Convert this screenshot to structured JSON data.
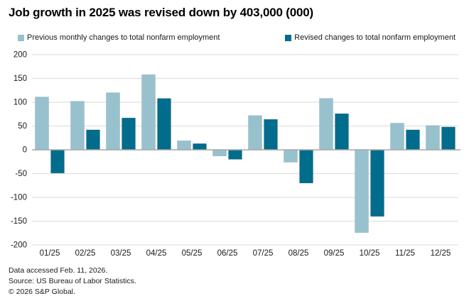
{
  "header": {
    "title": "Job growth in 2025 was revised down by 403,000 (000)"
  },
  "legend": {
    "items": [
      {
        "label": "Previous monthly changes to total nonfarm employment",
        "color": "#98c1ce"
      },
      {
        "label": "Revised changes to total nonfarm employment",
        "color": "#016c8c"
      }
    ]
  },
  "chart_data": {
    "type": "bar",
    "title": "Job growth in 2025 was revised down by 403,000 (000)",
    "categories": [
      "01/25",
      "02/25",
      "03/25",
      "04/25",
      "05/25",
      "06/25",
      "07/25",
      "08/25",
      "09/25",
      "10/25",
      "11/25",
      "12/25"
    ],
    "series": [
      {
        "name": "Previous monthly changes to total nonfarm employment",
        "color": "#98c1ce",
        "values": [
          111,
          102,
          120,
          158,
          19,
          -13,
          72,
          -26,
          108,
          -174,
          56,
          51
        ]
      },
      {
        "name": "Revised changes to total nonfarm employment",
        "color": "#016c8c",
        "values": [
          -49,
          42,
          67,
          108,
          13,
          -20,
          64,
          -70,
          76,
          -140,
          42,
          48
        ]
      }
    ],
    "xlabel": "",
    "ylabel": "",
    "ylim": [
      -200,
      200
    ],
    "ytick_step": 50,
    "yticks": [
      200,
      150,
      100,
      50,
      0,
      -50,
      -100,
      -150,
      -200
    ],
    "grid": true,
    "legend_position": "top",
    "colors": {
      "gridline": "#e0e0e0",
      "zero_line": "#a6a6a6",
      "axis_text": "#1a1a1a",
      "bar_outline": "rgba(0,0,0,0.14)"
    }
  },
  "footer": {
    "lines": [
      "Data accessed Feb. 11, 2026.",
      "Source: US Bureau of Labor Statistics.",
      "© 2026 S&P Global."
    ]
  }
}
